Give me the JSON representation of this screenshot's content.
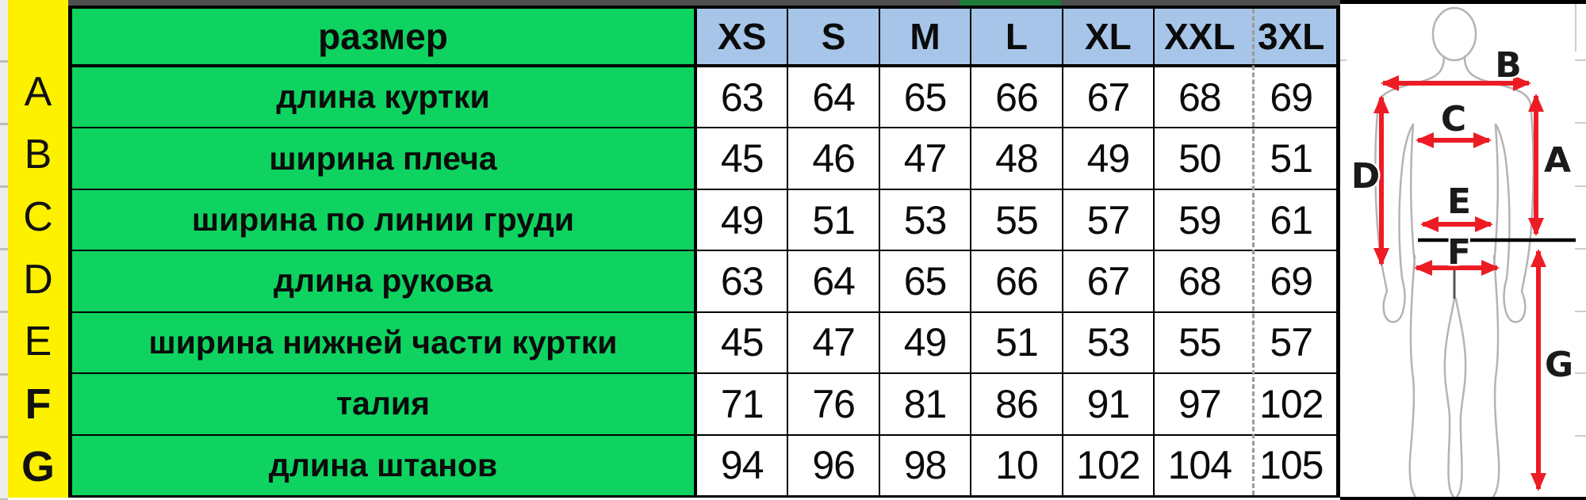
{
  "chart_data": {
    "type": "table",
    "corner_header": "размер",
    "size_columns": [
      "XS",
      "S",
      "M",
      "L",
      "XL",
      "XXL",
      "3XL"
    ],
    "rows": [
      {
        "key": "A",
        "label": "длина куртки",
        "values": [
          63,
          64,
          65,
          66,
          67,
          68,
          69
        ]
      },
      {
        "key": "B",
        "label": "ширина плеча",
        "values": [
          45,
          46,
          47,
          48,
          49,
          50,
          51
        ]
      },
      {
        "key": "C",
        "label": "ширина по линии груди",
        "values": [
          49,
          51,
          53,
          55,
          57,
          59,
          61
        ]
      },
      {
        "key": "D",
        "label": "длина рукова",
        "values": [
          63,
          64,
          65,
          66,
          67,
          68,
          69
        ]
      },
      {
        "key": "E",
        "label": "ширина нижней части куртки",
        "values": [
          45,
          47,
          49,
          51,
          53,
          55,
          57
        ]
      },
      {
        "key": "F",
        "label": "талия",
        "values": [
          71,
          76,
          81,
          86,
          91,
          97,
          102
        ]
      },
      {
        "key": "G",
        "label": "длина штанов",
        "values": [
          94,
          96,
          98,
          10,
          102,
          104,
          105
        ]
      }
    ]
  },
  "diagram": {
    "measure_labels": {
      "a": "A",
      "b": "B",
      "c": "C",
      "d": "D",
      "e": "E",
      "f": "F",
      "g": "G"
    },
    "arrow_color": "#ed1c24",
    "outline_color": "#b4b4b4"
  },
  "colors": {
    "row_key_bg": "#fdf100",
    "label_bg": "#0ed360",
    "size_header_bg": "#a6c5e8",
    "value_bg": "#ffffff",
    "grid_border": "#000000",
    "page_break": "#9a9a9a",
    "top_strip": "#4f4f4f",
    "top_strip_accent": "#1e7b3c"
  }
}
